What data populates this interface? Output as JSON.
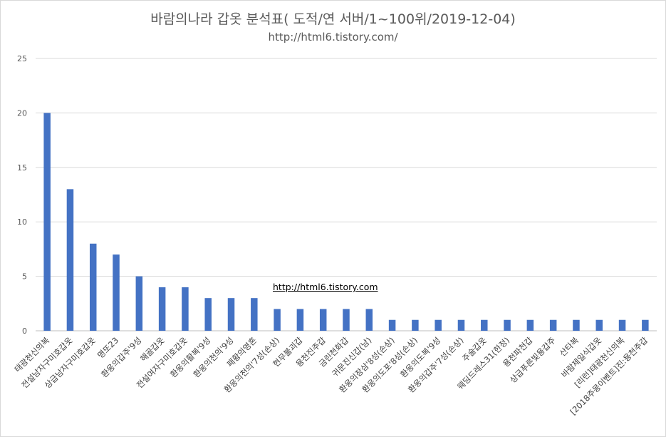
{
  "chart_data": {
    "type": "bar",
    "title": "바람의나라 갑옷 분석표( 도적/연 서버/1~100위/2019-12-04)",
    "subtitle": "http://html6.tistory.com/",
    "annotation": "http://html6.tistory.com",
    "ylim": [
      0,
      25
    ],
    "yticks": [
      0,
      5,
      10,
      15,
      20,
      25
    ],
    "grid": true,
    "legend": "none",
    "bar_color": "#4472c4",
    "categories": [
      "태광천신의복",
      "전설남자구미호갑옷",
      "상급남자구미호갑옷",
      "명또23",
      "환웅의갑주'9성",
      "해골갑옷",
      "전설여자구미호갑옷",
      "환웅의활복'9성",
      "환웅의천의'9성",
      "패황의영혼",
      "환웅의천의'7성(손상)",
      "현무불괴갑",
      "용천진주갑",
      "금린천화갑",
      "귀문진신갑(남)",
      "환웅의장삼'8성(손상)",
      "환웅의도포'8성(손상)",
      "환웅의도복'9성",
      "환웅의갑주'7성(손상)",
      "주술갑옷",
      "웨딩드레스31(한정)",
      "용천파천갑",
      "상급푸른빛용갑주",
      "산타복",
      "바람제일식갑옷",
      "[리런]태광천신의복",
      "[2018주몽이벤트]진:용천주갑"
    ],
    "values": [
      20,
      13,
      8,
      7,
      5,
      4,
      4,
      3,
      3,
      3,
      2,
      2,
      2,
      2,
      2,
      1,
      1,
      1,
      1,
      1,
      1,
      1,
      1,
      1,
      1,
      1,
      1
    ]
  }
}
